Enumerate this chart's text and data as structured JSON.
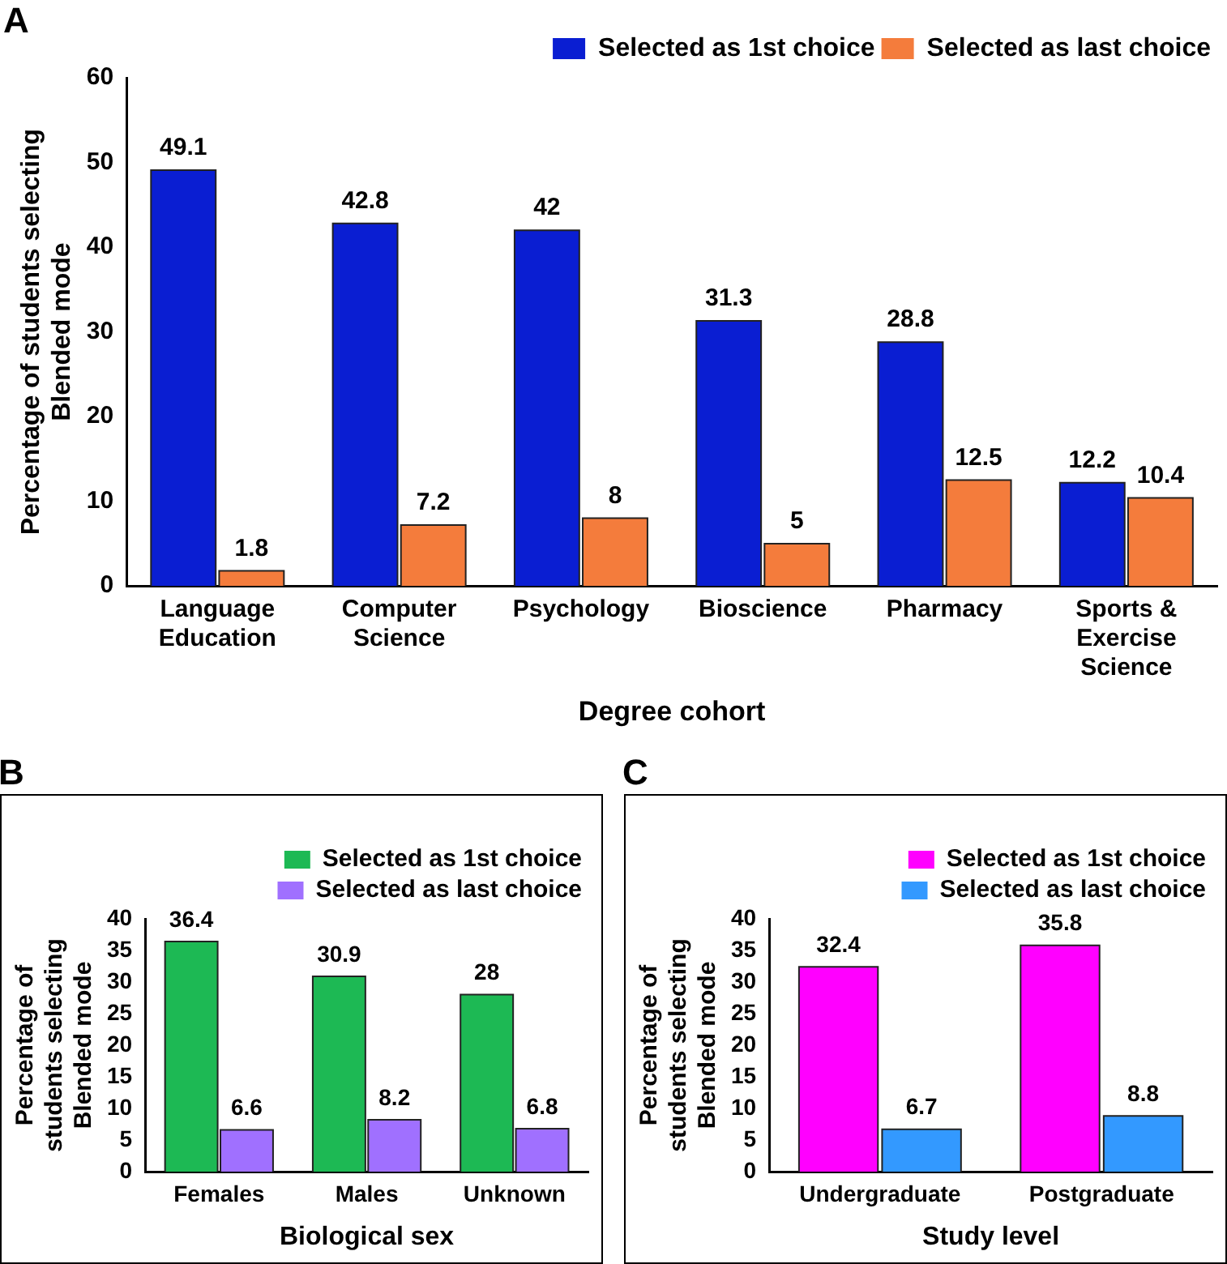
{
  "chart_data": [
    {
      "type": "bar",
      "annotations": [
        "A"
      ],
      "xlabel": "Degree cohort",
      "ylabel": "Percentage of students selecting Blended mode",
      "categories": [
        "Language Education",
        "Computer Science",
        "Psychology",
        "Bioscience",
        "Pharmacy",
        "Sports & Exercise Science"
      ],
      "series": [
        {
          "name": "Selected as 1st choice",
          "color": "#0a1ed2",
          "values": [
            49.1,
            42.8,
            42,
            31.3,
            28.8,
            12.2
          ]
        },
        {
          "name": "Selected as last choice",
          "color": "#f47c3c",
          "values": [
            1.8,
            7.2,
            8,
            5,
            12.5,
            10.4
          ]
        }
      ],
      "ylim": [
        0,
        60
      ],
      "yticks": [
        0,
        10,
        20,
        30,
        40,
        50,
        60
      ],
      "grid": false,
      "legend": "top right",
      "data_labels": true
    },
    {
      "type": "bar",
      "annotations": [
        "B"
      ],
      "xlabel": "Biological sex",
      "ylabel": "Percentage of students selecting Blended mode",
      "categories": [
        "Females",
        "Males",
        "Unknown"
      ],
      "series": [
        {
          "name": "Selected as 1st choice",
          "color": "#1db954",
          "values": [
            36.4,
            30.9,
            28
          ]
        },
        {
          "name": "Selected as last choice",
          "color": "#a070ff",
          "values": [
            6.6,
            8.2,
            6.8
          ]
        }
      ],
      "ylim": [
        0,
        40
      ],
      "yticks": [
        0,
        5,
        10,
        15,
        20,
        25,
        30,
        35,
        40
      ],
      "grid": false,
      "legend": "top right",
      "data_labels": true
    },
    {
      "type": "bar",
      "annotations": [
        "C"
      ],
      "xlabel": "Study level",
      "ylabel": "Percentage of students selecting Blended mode",
      "categories": [
        "Undergraduate",
        "Postgraduate"
      ],
      "series": [
        {
          "name": "Selected as 1st choice",
          "color": "#ff00ff",
          "values": [
            32.4,
            35.8
          ]
        },
        {
          "name": "Selected as last choice",
          "color": "#3399ff",
          "values": [
            6.7,
            8.8
          ]
        }
      ],
      "ylim": [
        0,
        40
      ],
      "yticks": [
        0,
        5,
        10,
        15,
        20,
        25,
        30,
        35,
        40
      ],
      "grid": false,
      "legend": "top right",
      "data_labels": true
    }
  ]
}
